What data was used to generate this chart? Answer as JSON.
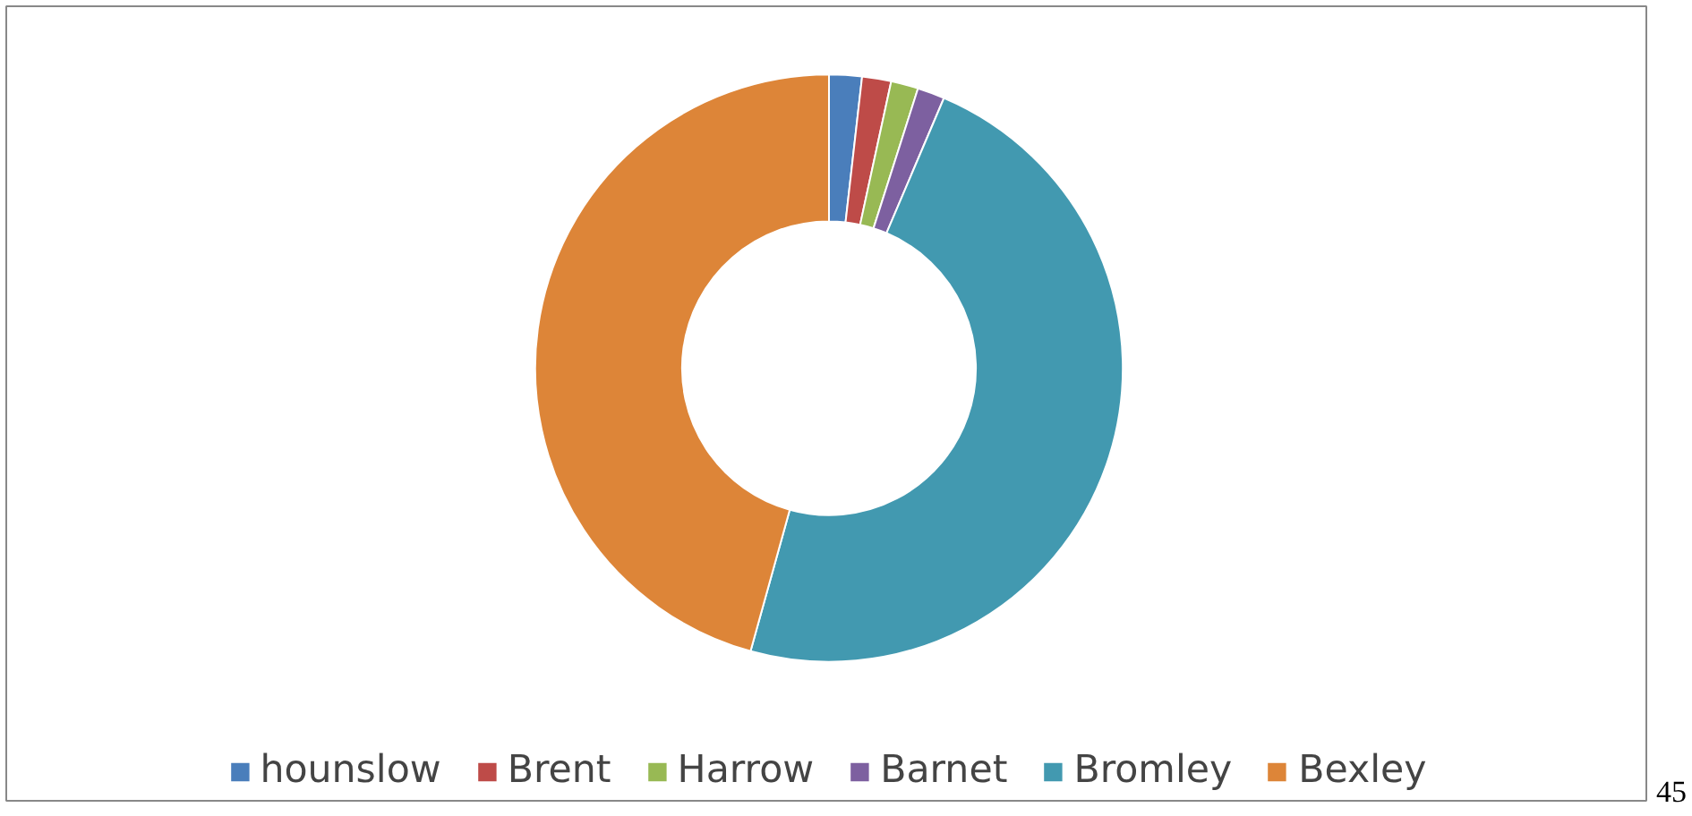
{
  "chart_data": {
    "type": "donut",
    "categories": [
      "hounslow",
      "Brent",
      "Harrow",
      "Barnet",
      "Bromley",
      "Bexley"
    ],
    "values": [
      1.8,
      1.6,
      1.5,
      1.5,
      47.9,
      45.7
    ],
    "colors": [
      "#4a7ebb",
      "#be4b48",
      "#98b954",
      "#7d60a0",
      "#4299b0",
      "#dd8538"
    ],
    "legend": "bottom",
    "annotations": [
      "45"
    ]
  }
}
